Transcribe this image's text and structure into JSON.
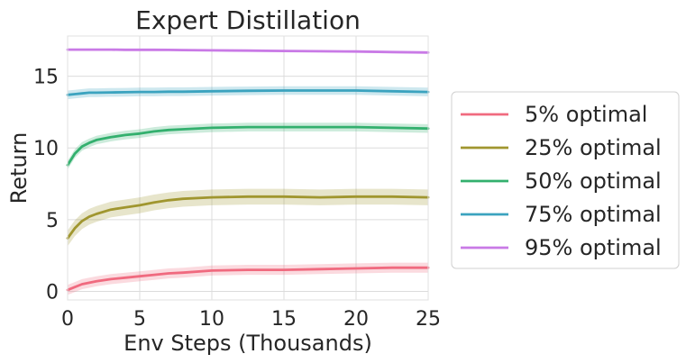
{
  "chart_data": {
    "type": "line",
    "title": "Expert Distillation",
    "xlabel": "Env Steps (Thousands)",
    "ylabel": "Return",
    "xlim": [
      0,
      25
    ],
    "ylim": [
      -0.6,
      17.8
    ],
    "xticks": [
      0,
      5,
      10,
      15,
      20,
      25
    ],
    "yticks": [
      0,
      5,
      10,
      15
    ],
    "grid": true,
    "legend_position": "right",
    "x": [
      0,
      0.5,
      1,
      1.5,
      2,
      3,
      4,
      5,
      6,
      7,
      8,
      10,
      12.5,
      15,
      17.5,
      20,
      22.5,
      25
    ],
    "series": [
      {
        "name": "5% optimal",
        "color": "#f06a7f",
        "values": [
          0.1,
          0.3,
          0.5,
          0.6,
          0.7,
          0.85,
          0.95,
          1.05,
          1.15,
          1.25,
          1.3,
          1.45,
          1.5,
          1.5,
          1.55,
          1.6,
          1.65,
          1.65
        ],
        "band": 0.35
      },
      {
        "name": "25% optimal",
        "color": "#a0962f",
        "values": [
          3.7,
          4.4,
          4.9,
          5.2,
          5.4,
          5.7,
          5.85,
          6.0,
          6.2,
          6.35,
          6.45,
          6.55,
          6.6,
          6.6,
          6.55,
          6.6,
          6.6,
          6.55
        ],
        "band": 0.55
      },
      {
        "name": "50% optimal",
        "color": "#33b06e",
        "values": [
          8.8,
          9.6,
          10.1,
          10.35,
          10.55,
          10.75,
          10.9,
          11.0,
          11.15,
          11.25,
          11.3,
          11.4,
          11.45,
          11.45,
          11.45,
          11.45,
          11.4,
          11.35
        ],
        "band": 0.3
      },
      {
        "name": "75% optimal",
        "color": "#3ba3bf",
        "values": [
          13.7,
          13.75,
          13.8,
          13.85,
          13.85,
          13.87,
          13.88,
          13.9,
          13.9,
          13.92,
          13.92,
          13.95,
          13.98,
          14.0,
          14.0,
          14.0,
          13.95,
          13.9
        ],
        "band": 0.3
      },
      {
        "name": "95% optimal",
        "color": "#c97ae6",
        "values": [
          16.85,
          16.85,
          16.85,
          16.85,
          16.85,
          16.85,
          16.84,
          16.84,
          16.84,
          16.83,
          16.82,
          16.8,
          16.78,
          16.76,
          16.74,
          16.72,
          16.68,
          16.65
        ],
        "band": 0.08
      }
    ]
  }
}
